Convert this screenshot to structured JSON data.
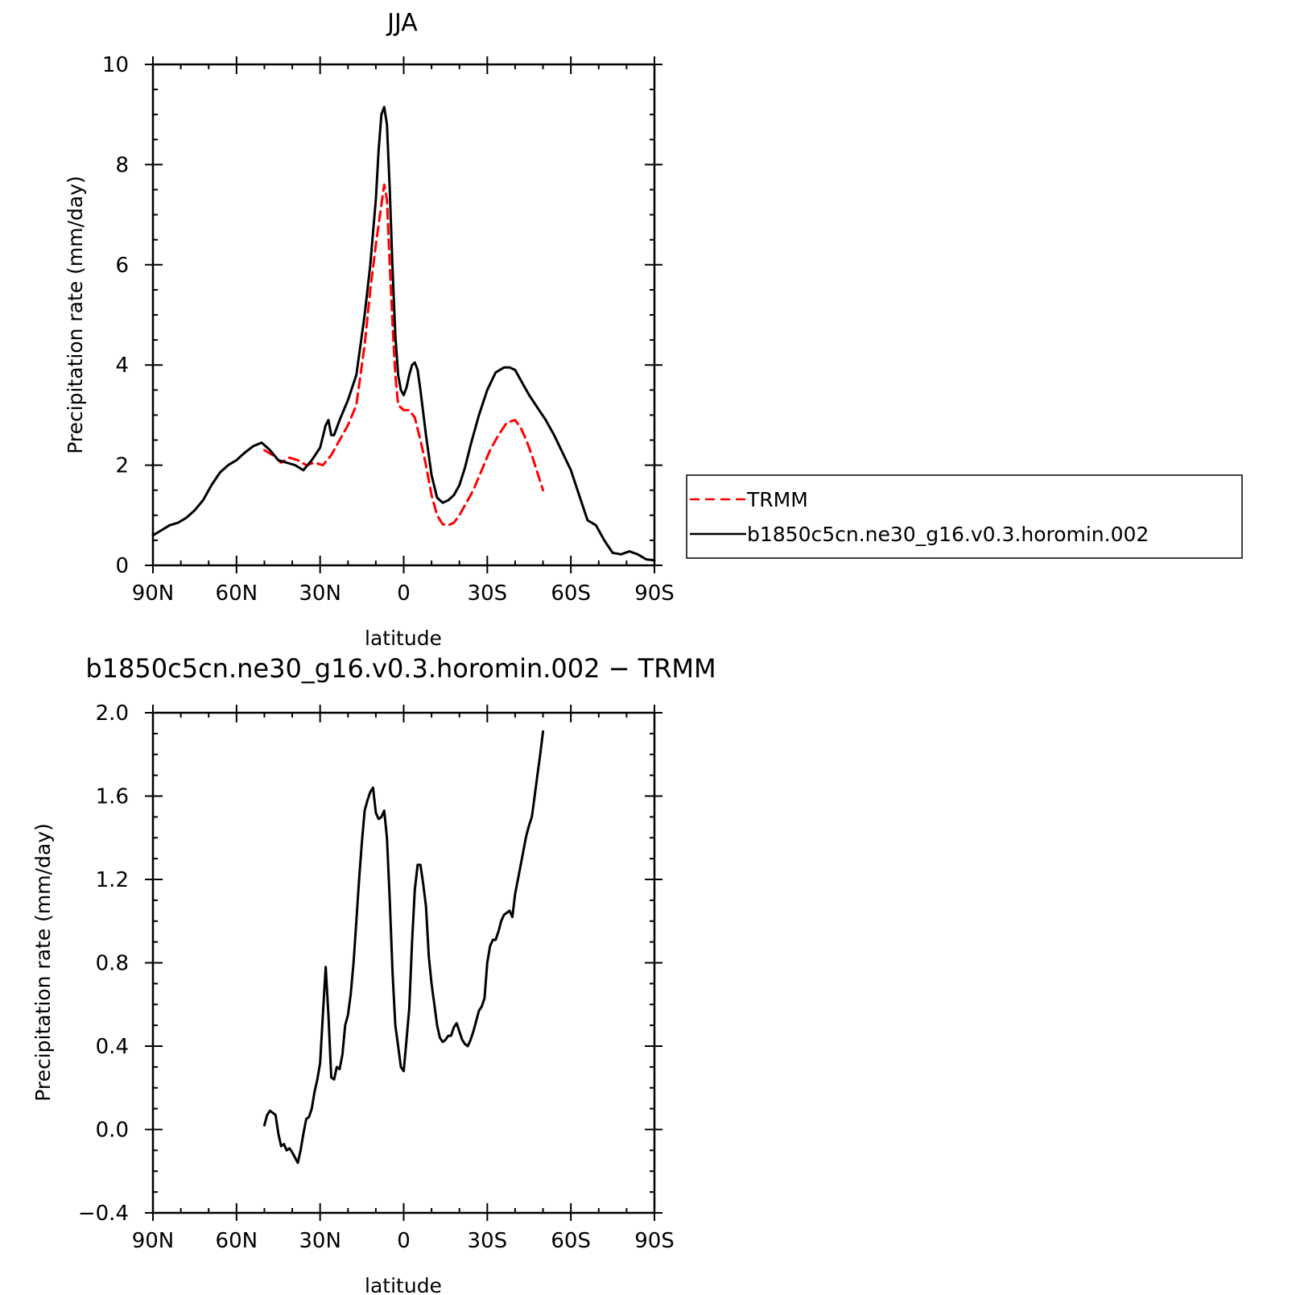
{
  "chart_data": [
    {
      "type": "line",
      "title": "JJA",
      "xlabel": "latitude",
      "ylabel": "Precipitation rate (mm/day)",
      "xlim": [
        90,
        -90
      ],
      "ylim": [
        0,
        10
      ],
      "x_ticks": [
        90,
        60,
        30,
        0,
        -30,
        -60,
        -90
      ],
      "x_tick_labels": [
        "90N",
        "60N",
        "30N",
        "0",
        "30S",
        "60S",
        "90S"
      ],
      "y_ticks": [
        0,
        2,
        4,
        6,
        8,
        10
      ],
      "y_tick_labels": [
        "0",
        "2",
        "4",
        "6",
        "8",
        "10"
      ],
      "legend_position": "right",
      "series": [
        {
          "name": "TRMM",
          "color": "#ff0000",
          "dash": "dashed",
          "x": [
            50,
            47,
            44,
            41,
            38,
            35,
            32,
            29,
            26,
            23,
            20,
            17,
            14,
            12,
            10,
            8,
            7,
            6,
            5,
            4,
            3,
            2,
            0,
            -2,
            -4,
            -6,
            -8,
            -10,
            -12,
            -14,
            -16,
            -18,
            -20,
            -22,
            -25,
            -28,
            -31,
            -34,
            -37,
            -40,
            -42,
            -44,
            -46,
            -48,
            -50
          ],
          "y": [
            2.3,
            2.2,
            2.05,
            2.15,
            2.1,
            2.0,
            2.05,
            2.0,
            2.2,
            2.5,
            2.8,
            3.2,
            4.4,
            5.5,
            6.4,
            7.2,
            7.6,
            7.3,
            6.0,
            4.8,
            3.8,
            3.2,
            3.1,
            3.1,
            2.95,
            2.5,
            2.0,
            1.4,
            1.0,
            0.82,
            0.8,
            0.85,
            1.0,
            1.2,
            1.5,
            1.9,
            2.3,
            2.6,
            2.85,
            2.9,
            2.75,
            2.5,
            2.2,
            1.85,
            1.5
          ]
        },
        {
          "name": "b1850c5cn.ne30_g16.v0.3.horomin.002",
          "color": "#000000",
          "dash": "solid",
          "x": [
            90,
            87,
            84,
            81,
            78,
            75,
            72,
            69,
            66,
            63,
            60,
            57,
            54,
            51,
            48,
            45,
            42,
            39,
            36,
            33,
            30,
            28,
            27,
            26,
            25,
            23,
            20,
            17,
            14,
            12,
            10,
            9,
            8,
            7,
            6,
            5,
            4,
            3,
            2,
            1,
            0,
            -1,
            -2,
            -3,
            -4,
            -5,
            -6,
            -8,
            -10,
            -12,
            -14,
            -16,
            -18,
            -20,
            -22,
            -24,
            -27,
            -30,
            -33,
            -36,
            -38,
            -40,
            -41,
            -43,
            -45,
            -48,
            -51,
            -54,
            -57,
            -60,
            -63,
            -66,
            -69,
            -72,
            -75,
            -78,
            -81,
            -84,
            -87,
            -90
          ],
          "y": [
            0.6,
            0.7,
            0.8,
            0.85,
            0.95,
            1.1,
            1.3,
            1.6,
            1.85,
            2.0,
            2.1,
            2.25,
            2.38,
            2.45,
            2.3,
            2.1,
            2.05,
            2.0,
            1.9,
            2.1,
            2.35,
            2.8,
            2.9,
            2.6,
            2.6,
            2.9,
            3.3,
            3.8,
            5.0,
            6.0,
            7.3,
            8.3,
            9.0,
            9.15,
            8.8,
            7.5,
            5.9,
            4.6,
            3.8,
            3.5,
            3.4,
            3.55,
            3.8,
            4.0,
            4.05,
            3.9,
            3.5,
            2.6,
            1.8,
            1.35,
            1.25,
            1.3,
            1.4,
            1.6,
            1.95,
            2.4,
            3.0,
            3.5,
            3.85,
            3.95,
            3.95,
            3.9,
            3.8,
            3.6,
            3.4,
            3.15,
            2.9,
            2.6,
            2.25,
            1.9,
            1.4,
            0.9,
            0.8,
            0.5,
            0.25,
            0.22,
            0.28,
            0.22,
            0.12,
            0.1
          ]
        }
      ]
    },
    {
      "type": "line",
      "title": "b1850c5cn.ne30_g16.v0.3.horomin.002 − TRMM",
      "xlabel": "latitude",
      "ylabel": "Precipitation rate (mm/day)",
      "xlim": [
        90,
        -90
      ],
      "ylim": [
        -0.4,
        2.0
      ],
      "x_ticks": [
        90,
        60,
        30,
        0,
        -30,
        -60,
        -90
      ],
      "x_tick_labels": [
        "90N",
        "60N",
        "30N",
        "0",
        "30S",
        "60S",
        "90S"
      ],
      "y_ticks": [
        -0.4,
        0.0,
        0.4,
        0.8,
        1.2,
        1.6,
        2.0
      ],
      "y_tick_labels": [
        "−0.4",
        "0.0",
        "0.4",
        "0.8",
        "1.2",
        "1.6",
        "2.0"
      ],
      "series": [
        {
          "color": "#000000",
          "dash": "solid",
          "x": [
            50,
            49,
            48,
            46,
            45,
            44,
            43,
            42,
            41,
            40,
            38,
            37,
            36,
            35,
            34,
            33,
            32,
            31,
            30,
            29,
            28,
            27,
            26,
            25,
            24,
            23,
            22,
            21,
            20,
            19,
            18,
            17,
            16,
            15,
            14,
            13,
            12,
            11,
            10,
            9,
            8,
            7,
            6,
            5,
            4,
            3,
            2,
            1,
            0,
            -1,
            -2,
            -3,
            -4,
            -5,
            -6,
            -7,
            -8,
            -9,
            -10,
            -11,
            -12,
            -13,
            -14,
            -15,
            -16,
            -17,
            -18,
            -19,
            -20,
            -21,
            -22,
            -23,
            -24,
            -25,
            -26,
            -27,
            -28,
            -29,
            -30,
            -31,
            -32,
            -33,
            -34,
            -35,
            -36,
            -37,
            -38,
            -39,
            -40,
            -41,
            -42,
            -43,
            -44,
            -45,
            -46,
            -47,
            -48,
            -49,
            -50
          ],
          "y": [
            0.02,
            0.07,
            0.09,
            0.07,
            -0.02,
            -0.08,
            -0.07,
            -0.1,
            -0.09,
            -0.11,
            -0.16,
            -0.1,
            -0.02,
            0.05,
            0.06,
            0.1,
            0.18,
            0.24,
            0.32,
            0.55,
            0.78,
            0.55,
            0.25,
            0.24,
            0.3,
            0.29,
            0.36,
            0.5,
            0.55,
            0.65,
            0.8,
            1.0,
            1.2,
            1.38,
            1.53,
            1.58,
            1.62,
            1.64,
            1.52,
            1.49,
            1.5,
            1.53,
            1.4,
            1.1,
            0.75,
            0.5,
            0.4,
            0.3,
            0.28,
            0.43,
            0.58,
            0.9,
            1.15,
            1.27,
            1.27,
            1.18,
            1.07,
            0.83,
            0.7,
            0.6,
            0.5,
            0.44,
            0.42,
            0.43,
            0.45,
            0.45,
            0.49,
            0.51,
            0.47,
            0.43,
            0.41,
            0.4,
            0.43,
            0.47,
            0.52,
            0.57,
            0.59,
            0.63,
            0.8,
            0.88,
            0.91,
            0.91,
            0.95,
            1.0,
            1.03,
            1.04,
            1.05,
            1.02,
            1.13,
            1.2,
            1.27,
            1.34,
            1.41,
            1.46,
            1.5,
            1.6,
            1.7,
            1.8,
            1.91
          ]
        }
      ]
    }
  ]
}
